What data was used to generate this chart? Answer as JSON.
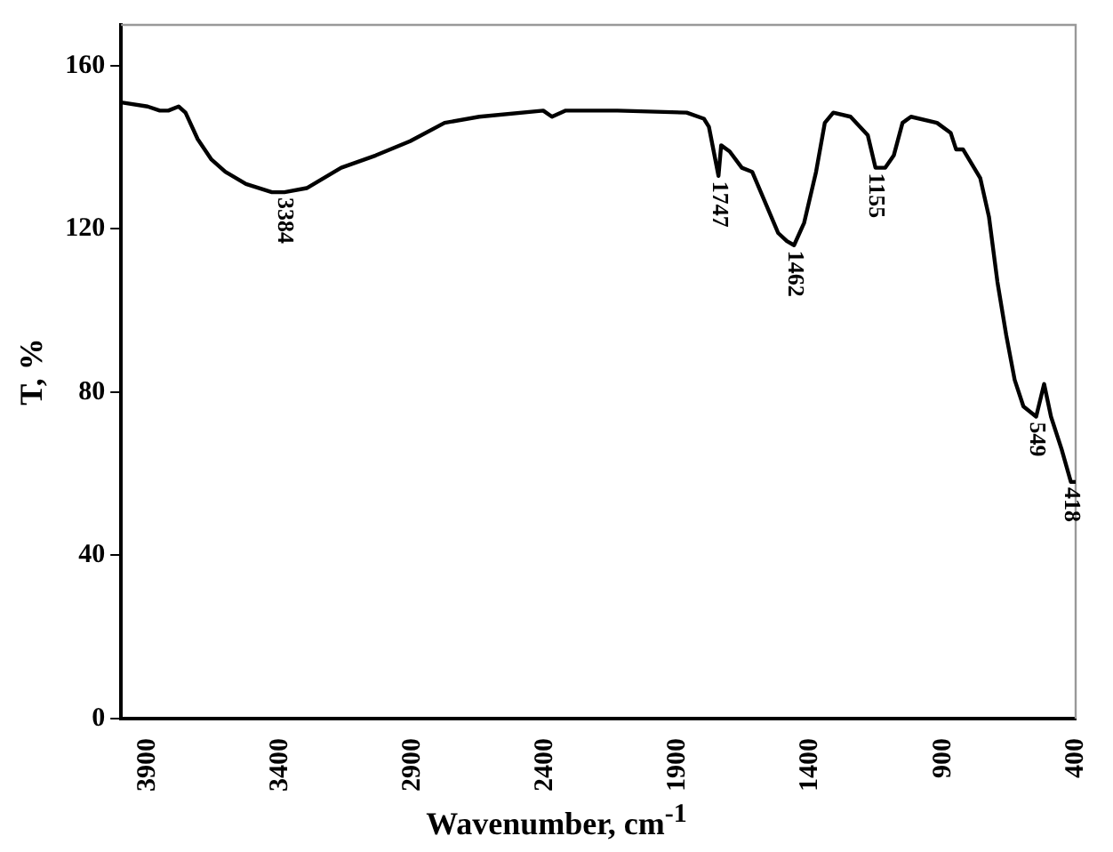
{
  "chart_data": {
    "type": "line",
    "xlabel": "Wavenumber, cm$^{-1}$",
    "ylabel": "T, %",
    "xlim": [
      4000,
      400
    ],
    "xticks": [
      3900,
      3400,
      2900,
      2400,
      1900,
      1400,
      900,
      400
    ],
    "ylim": [
      0,
      170
    ],
    "yticks": [
      0,
      40,
      80,
      120,
      160
    ],
    "grid": false,
    "legend": false,
    "marker": "none",
    "line_style": "solid",
    "series": [
      {
        "color": "#000000",
        "x": [
          4000,
          3900,
          3854,
          3822,
          3783,
          3757,
          3711,
          3659,
          3607,
          3529,
          3431,
          3384,
          3300,
          3170,
          3040,
          2910,
          2780,
          2649,
          2408,
          2375,
          2323,
          2128,
          1867,
          1802,
          1783,
          1747,
          1737,
          1705,
          1659,
          1620,
          1574,
          1522,
          1489,
          1462,
          1424,
          1379,
          1346,
          1314,
          1249,
          1184,
          1155,
          1118,
          1086,
          1053,
          1021,
          923,
          871,
          851,
          825,
          760,
          727,
          695,
          662,
          630,
          597,
          549,
          519,
          493,
          453,
          418,
          400
        ],
        "values": [
          151,
          150,
          149,
          149,
          150,
          148.5,
          142,
          137,
          134,
          131,
          129,
          129,
          130,
          135,
          138,
          141.5,
          146,
          147.5,
          149,
          147.5,
          149,
          149,
          148.5,
          147,
          145,
          133,
          140.5,
          139,
          135,
          134,
          127,
          119,
          117,
          116,
          121.5,
          134,
          146,
          148.5,
          147.5,
          143,
          135,
          135,
          138,
          146,
          147.5,
          146,
          143.5,
          139.5,
          139.5,
          132.5,
          123,
          107,
          94,
          83,
          76.5,
          74,
          82,
          74,
          66,
          58,
          58
        ]
      }
    ],
    "annotations": [
      {
        "text": "3384",
        "x": 3384,
        "y": 129
      },
      {
        "text": "1747",
        "x": 1747,
        "y": 133
      },
      {
        "text": "1462",
        "x": 1462,
        "y": 116
      },
      {
        "text": "1155",
        "x": 1155,
        "y": 135
      },
      {
        "text": "549",
        "x": 549,
        "y": 74
      },
      {
        "text": "418",
        "x": 418,
        "y": 58
      }
    ]
  }
}
